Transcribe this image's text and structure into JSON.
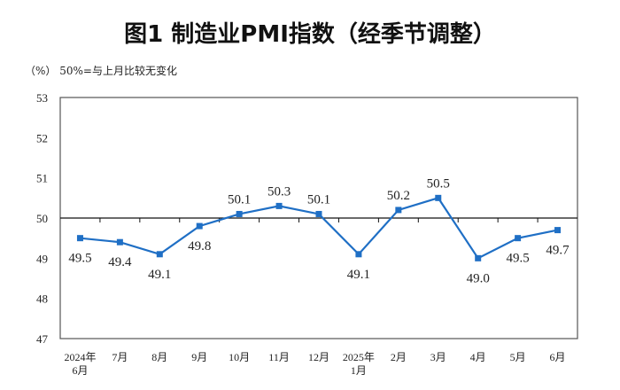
{
  "chart_data": {
    "type": "line",
    "title": "图1  制造业PMI指数（经季节调整）",
    "unit_note": "（%）  50%=与上月比较无变化",
    "categories": [
      [
        "2024年",
        "6月"
      ],
      [
        "7月"
      ],
      [
        "8月"
      ],
      [
        "9月"
      ],
      [
        "10月"
      ],
      [
        "11月"
      ],
      [
        "12月"
      ],
      [
        "2025年",
        "1月"
      ],
      [
        "2月"
      ],
      [
        "3月"
      ],
      [
        "4月"
      ],
      [
        "5月"
      ],
      [
        "6月"
      ]
    ],
    "values": [
      49.5,
      49.4,
      49.1,
      49.8,
      50.1,
      50.3,
      50.1,
      49.1,
      50.2,
      50.5,
      49.0,
      49.5,
      49.7
    ],
    "data_labels": [
      "49.5",
      "49.4",
      "49.1",
      "49.8",
      "50.1",
      "50.3",
      "50.1",
      "49.1",
      "50.2",
      "50.5",
      "49.0",
      "49.5",
      "49.7"
    ],
    "ylim": [
      47,
      53
    ],
    "yticks": [
      47,
      48,
      49,
      50,
      51,
      52,
      53
    ],
    "reference_line": 50,
    "grid": false,
    "legend": "none",
    "colors": {
      "line": "#1f6fc5",
      "marker": "#1f6fc5",
      "axis": "#555555"
    }
  }
}
